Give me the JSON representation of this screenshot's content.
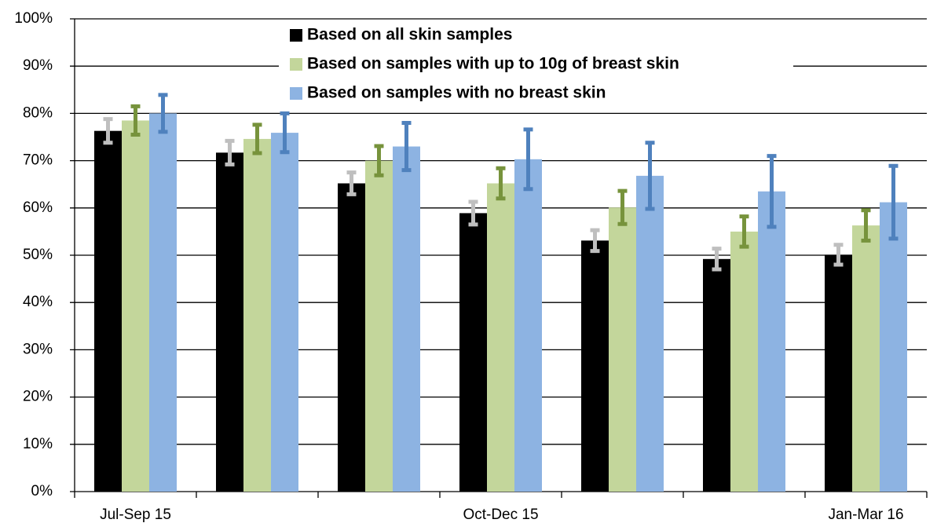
{
  "chart_data": {
    "type": "bar",
    "categories": [
      "Jul-Sep 15",
      null,
      null,
      "Oct-Dec 15",
      null,
      null,
      "Jan-Mar 16"
    ],
    "series": [
      {
        "name": "Based on all skin samples",
        "color": "#000000",
        "error_color": "#bfbfbf",
        "values": [
          76.3,
          71.7,
          65.2,
          58.9,
          53.1,
          49.2,
          50.1
        ],
        "errors": [
          2.5,
          2.5,
          2.3,
          2.4,
          2.2,
          2.2,
          2.1
        ]
      },
      {
        "name": "Based on samples with up to 10g of breast skin",
        "color": "#c3d69b",
        "error_color": "#77933c",
        "values": [
          78.5,
          74.6,
          70.0,
          65.2,
          60.1,
          55.0,
          56.3
        ],
        "errors": [
          3.0,
          3.0,
          3.1,
          3.2,
          3.5,
          3.2,
          3.2
        ]
      },
      {
        "name": "Based on samples with no breast skin",
        "color": "#8db3e2",
        "error_color": "#4f81bd",
        "values": [
          80.0,
          75.9,
          73.0,
          70.3,
          66.8,
          63.5,
          61.2
        ],
        "errors": [
          3.9,
          4.1,
          5.0,
          6.3,
          7.0,
          7.5,
          7.7
        ]
      }
    ],
    "ylim": [
      0,
      100
    ],
    "yticks": [
      {
        "value": 0,
        "label": "0%"
      },
      {
        "value": 10,
        "label": "10%"
      },
      {
        "value": 20,
        "label": "20%"
      },
      {
        "value": 30,
        "label": "30%"
      },
      {
        "value": 40,
        "label": "40%"
      },
      {
        "value": 50,
        "label": "50%"
      },
      {
        "value": 60,
        "label": "60%"
      },
      {
        "value": 70,
        "label": "70%"
      },
      {
        "value": 80,
        "label": "80%"
      },
      {
        "value": 90,
        "label": "90%"
      },
      {
        "value": 100,
        "label": "100%"
      }
    ],
    "grid": true,
    "legend": "top"
  }
}
